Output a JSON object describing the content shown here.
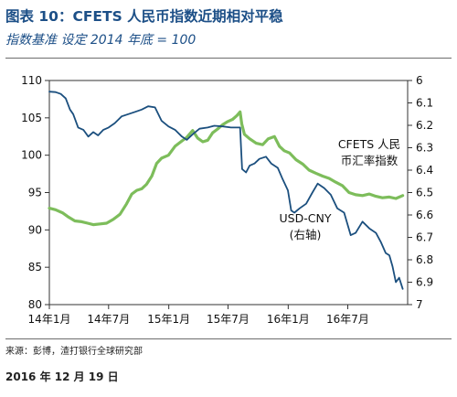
{
  "header": {
    "title": "图表 10：CFETS 人民币指数近期相对平稳",
    "subtitle": "指数基准 设定 2014 年底 = 100"
  },
  "footer": {
    "source": "来源：彭博，渣打银行全球研究部",
    "date": "2016 年 12 月 19 日"
  },
  "chart_data": {
    "type": "line",
    "x_labels": [
      "14年1月",
      "14年7月",
      "15年1月",
      "15年7月",
      "16年1月",
      "16年7月"
    ],
    "x_range": [
      "2014-01",
      "2016-12"
    ],
    "left_axis": {
      "ylim": [
        80,
        110
      ],
      "ticks": [
        "80",
        "85",
        "90",
        "95",
        "100",
        "105",
        "110"
      ]
    },
    "right_axis": {
      "ylim": [
        6.0,
        7.0
      ],
      "inverted": true,
      "ticks": [
        "6",
        "6.1",
        "6.2",
        "6.3",
        "6.4",
        "6.5",
        "6.6",
        "6.7",
        "6.8",
        "6.9",
        "7"
      ]
    },
    "grid": false,
    "series": [
      {
        "name": "CFETS 人民币汇率指数",
        "label_lines": [
          "CFETS 人民",
          "币汇率指数"
        ],
        "axis": "left",
        "color": "#7dbd5b",
        "points": [
          [
            "2014-01-01",
            92.9
          ],
          [
            "2014-01-20",
            92.7
          ],
          [
            "2014-02-10",
            92.3
          ],
          [
            "2014-03-01",
            91.7
          ],
          [
            "2014-03-20",
            91.2
          ],
          [
            "2014-04-10",
            91.1
          ],
          [
            "2014-04-28",
            90.9
          ],
          [
            "2014-05-15",
            90.7
          ],
          [
            "2014-06-05",
            90.8
          ],
          [
            "2014-06-25",
            90.9
          ],
          [
            "2014-07-15",
            91.4
          ],
          [
            "2014-08-05",
            92.1
          ],
          [
            "2014-08-25",
            93.5
          ],
          [
            "2014-09-10",
            94.8
          ],
          [
            "2014-09-25",
            95.3
          ],
          [
            "2014-10-10",
            95.5
          ],
          [
            "2014-10-25",
            96.1
          ],
          [
            "2014-11-10",
            97.2
          ],
          [
            "2014-11-25",
            98.9
          ],
          [
            "2014-12-10",
            99.6
          ],
          [
            "2014-12-31",
            100.0
          ],
          [
            "2015-01-20",
            101.2
          ],
          [
            "2015-02-10",
            101.9
          ],
          [
            "2015-02-25",
            102.4
          ],
          [
            "2015-03-15",
            103.3
          ],
          [
            "2015-03-30",
            102.3
          ],
          [
            "2015-04-15",
            101.8
          ],
          [
            "2015-04-30",
            102.0
          ],
          [
            "2015-05-15",
            103.0
          ],
          [
            "2015-05-30",
            103.5
          ],
          [
            "2015-06-15",
            104.1
          ],
          [
            "2015-06-30",
            104.5
          ],
          [
            "2015-07-15",
            104.8
          ],
          [
            "2015-07-28",
            105.3
          ],
          [
            "2015-08-07",
            105.8
          ],
          [
            "2015-08-12",
            104.2
          ],
          [
            "2015-08-20",
            102.8
          ],
          [
            "2015-09-05",
            102.2
          ],
          [
            "2015-09-25",
            101.6
          ],
          [
            "2015-10-15",
            101.4
          ],
          [
            "2015-11-01",
            102.2
          ],
          [
            "2015-11-20",
            102.5
          ],
          [
            "2015-12-05",
            101.2
          ],
          [
            "2015-12-20",
            100.6
          ],
          [
            "2016-01-05",
            100.3
          ],
          [
            "2016-01-25",
            99.4
          ],
          [
            "2016-02-15",
            98.8
          ],
          [
            "2016-03-05",
            98.0
          ],
          [
            "2016-03-25",
            97.6
          ],
          [
            "2016-04-15",
            97.2
          ],
          [
            "2016-05-05",
            96.9
          ],
          [
            "2016-05-25",
            96.4
          ],
          [
            "2016-06-15",
            95.9
          ],
          [
            "2016-07-05",
            95.0
          ],
          [
            "2016-07-25",
            94.7
          ],
          [
            "2016-08-15",
            94.6
          ],
          [
            "2016-09-05",
            94.8
          ],
          [
            "2016-09-25",
            94.5
          ],
          [
            "2016-10-15",
            94.3
          ],
          [
            "2016-11-05",
            94.4
          ],
          [
            "2016-11-25",
            94.2
          ],
          [
            "2016-12-16",
            94.6
          ]
        ]
      },
      {
        "name": "USD-CNY",
        "label_lines": [
          "USD-CNY",
          "(右轴)"
        ],
        "axis": "right",
        "color": "#1b4f7e",
        "points": [
          [
            "2014-01-01",
            6.05
          ],
          [
            "2014-01-20",
            6.052
          ],
          [
            "2014-02-05",
            6.06
          ],
          [
            "2014-02-20",
            6.08
          ],
          [
            "2014-03-05",
            6.13
          ],
          [
            "2014-03-15",
            6.15
          ],
          [
            "2014-03-30",
            6.21
          ],
          [
            "2014-04-15",
            6.22
          ],
          [
            "2014-04-30",
            6.25
          ],
          [
            "2014-05-15",
            6.23
          ],
          [
            "2014-05-30",
            6.245
          ],
          [
            "2014-06-15",
            6.22
          ],
          [
            "2014-07-01",
            6.21
          ],
          [
            "2014-07-20",
            6.19
          ],
          [
            "2014-08-10",
            6.16
          ],
          [
            "2014-08-30",
            6.15
          ],
          [
            "2014-09-20",
            6.14
          ],
          [
            "2014-10-10",
            6.13
          ],
          [
            "2014-10-30",
            6.115
          ],
          [
            "2014-11-20",
            6.12
          ],
          [
            "2014-12-10",
            6.18
          ],
          [
            "2014-12-31",
            6.205
          ],
          [
            "2015-01-20",
            6.22
          ],
          [
            "2015-02-10",
            6.25
          ],
          [
            "2015-02-25",
            6.265
          ],
          [
            "2015-03-15",
            6.24
          ],
          [
            "2015-04-05",
            6.215
          ],
          [
            "2015-04-30",
            6.21
          ],
          [
            "2015-05-20",
            6.202
          ],
          [
            "2015-06-15",
            6.205
          ],
          [
            "2015-07-10",
            6.21
          ],
          [
            "2015-08-07",
            6.21
          ],
          [
            "2015-08-11",
            6.33
          ],
          [
            "2015-08-13",
            6.395
          ],
          [
            "2015-08-25",
            6.41
          ],
          [
            "2015-09-05",
            6.38
          ],
          [
            "2015-09-20",
            6.37
          ],
          [
            "2015-10-05",
            6.35
          ],
          [
            "2015-10-25",
            6.34
          ],
          [
            "2015-11-10",
            6.37
          ],
          [
            "2015-11-30",
            6.39
          ],
          [
            "2015-12-15",
            6.44
          ],
          [
            "2015-12-31",
            6.49
          ],
          [
            "2016-01-10",
            6.58
          ],
          [
            "2016-01-20",
            6.59
          ],
          [
            "2016-02-05",
            6.57
          ],
          [
            "2016-02-25",
            6.55
          ],
          [
            "2016-03-15",
            6.5
          ],
          [
            "2016-03-31",
            6.46
          ],
          [
            "2016-04-20",
            6.48
          ],
          [
            "2016-05-10",
            6.51
          ],
          [
            "2016-05-30",
            6.57
          ],
          [
            "2016-06-20",
            6.59
          ],
          [
            "2016-07-10",
            6.69
          ],
          [
            "2016-07-25",
            6.68
          ],
          [
            "2016-08-15",
            6.63
          ],
          [
            "2016-09-05",
            6.66
          ],
          [
            "2016-09-25",
            6.68
          ],
          [
            "2016-10-10",
            6.72
          ],
          [
            "2016-10-25",
            6.77
          ],
          [
            "2016-11-05",
            6.78
          ],
          [
            "2016-11-15",
            6.83
          ],
          [
            "2016-11-25",
            6.9
          ],
          [
            "2016-12-05",
            6.88
          ],
          [
            "2016-12-16",
            6.93
          ]
        ]
      }
    ]
  }
}
